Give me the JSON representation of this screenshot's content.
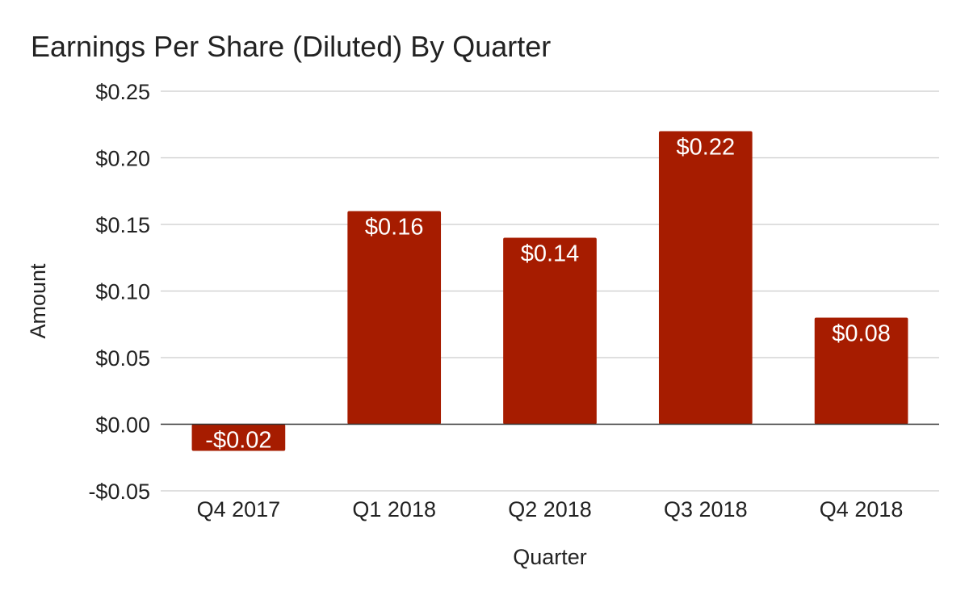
{
  "chart_data": {
    "type": "bar",
    "title": "Earnings Per Share (Diluted) By Quarter",
    "xlabel": "Quarter",
    "ylabel": "Amount",
    "categories": [
      "Q4 2017",
      "Q1 2018",
      "Q2 2018",
      "Q3 2018",
      "Q4 2018"
    ],
    "series": [
      {
        "values": [
          -0.02,
          0.16,
          0.14,
          0.22,
          0.08
        ],
        "color": "#a61c00"
      }
    ],
    "data_labels": [
      "-$0.02",
      "$0.16",
      "$0.14",
      "$0.22",
      "$0.08"
    ],
    "ylim": [
      -0.05,
      0.25
    ],
    "yticks": [
      -0.05,
      0.0,
      0.05,
      0.1,
      0.15,
      0.2,
      0.25
    ],
    "ytick_labels": [
      "-$0.05",
      "$0.00",
      "$0.05",
      "$0.10",
      "$0.15",
      "$0.20",
      "$0.25"
    ],
    "grid": true,
    "legend": "none",
    "colors": {
      "bar": "#a61c00",
      "grid": "#cccccc",
      "zero_line": "#333333",
      "text": "#222222",
      "label_text": "#ffffff"
    }
  }
}
